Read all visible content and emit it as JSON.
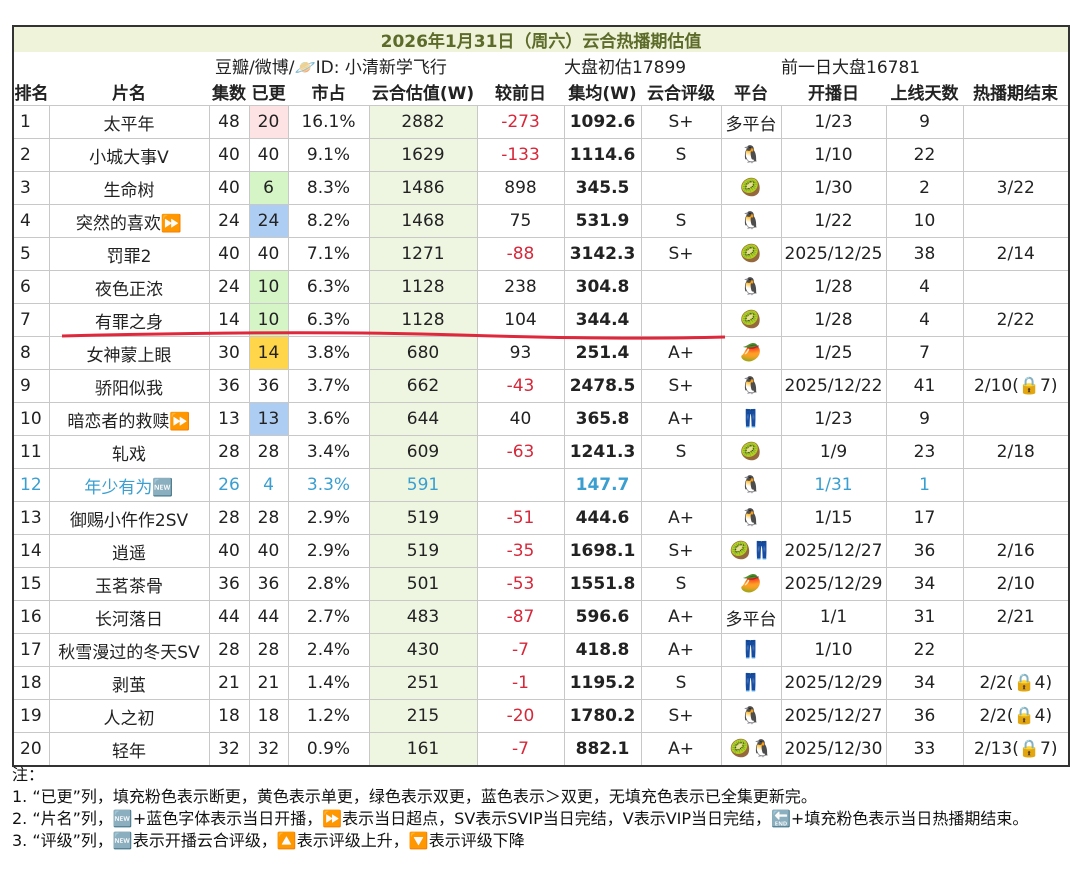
{
  "header": {
    "title": "2026年1月31日（周六）云合热播期估值",
    "source": "豆瓣/微博/🪐ID: 小清新学飞行",
    "estimate": "大盘初估17899",
    "previous": "前一日大盘16781"
  },
  "table": {
    "columns": [
      "排名",
      "片名",
      "集数",
      "已更",
      "市占",
      "云合估值(W)",
      "较前日",
      "集均(W)",
      "云合评级",
      "平台",
      "开播日",
      "上线天数",
      "热播期结束"
    ],
    "rows": [
      {
        "cells": [
          "1",
          "太平年",
          "48",
          "20",
          "16.1%",
          "2882",
          "-273",
          "1092.6",
          "S+",
          "多平台",
          "1/23",
          "9",
          null
        ],
        "update_color": "#fde3e3"
      },
      {
        "cells": [
          "2",
          "小城大事V",
          "40",
          "40",
          "9.1%",
          "1629",
          "-133",
          "1114.6",
          "S",
          "🐧",
          "1/10",
          "22",
          null
        ]
      },
      {
        "cells": [
          "3",
          "生命树",
          "40",
          "6",
          "8.3%",
          "1486",
          "898",
          "345.5",
          null,
          "🥝",
          "1/30",
          "2",
          "3/22"
        ],
        "update_color": "#d6f5c6"
      },
      {
        "cells": [
          "4",
          "突然的喜欢⏩",
          "24",
          "24",
          "8.2%",
          "1468",
          "75",
          "531.9",
          "S",
          "🐧",
          "1/22",
          "10",
          null
        ],
        "update_color": "#aecdf3"
      },
      {
        "cells": [
          "5",
          "罚罪2",
          "40",
          "40",
          "7.1%",
          "1271",
          "-88",
          "3142.3",
          "S+",
          "🥝",
          "2025/12/25",
          "38",
          "2/14"
        ]
      },
      {
        "cells": [
          "6",
          "夜色正浓",
          "24",
          "10",
          "6.3%",
          "1128",
          "238",
          "304.8",
          null,
          "🐧",
          "1/28",
          "4",
          null
        ],
        "update_color": "#d6f5c6"
      },
      {
        "cells": [
          "7",
          "有罪之身",
          "14",
          "10",
          "6.3%",
          "1128",
          "104",
          "344.4",
          null,
          "🥝",
          "1/28",
          "4",
          "2/22"
        ],
        "update_color": "#d6f5c6"
      },
      {
        "cells": [
          "8",
          "女神蒙上眼",
          "30",
          "14",
          "3.8%",
          "680",
          "93",
          "251.4",
          "A+",
          "🥭",
          "1/25",
          "7",
          null
        ],
        "update_color": "#ffd54a"
      },
      {
        "cells": [
          "9",
          "骄阳似我",
          "36",
          "36",
          "3.7%",
          "662",
          "-43",
          "2478.5",
          "S+",
          "🐧",
          "2025/12/22",
          "41",
          "2/10(🔒7)"
        ]
      },
      {
        "cells": [
          "10",
          "暗恋者的救赎⏩",
          "13",
          "13",
          "3.6%",
          "644",
          "40",
          "365.8",
          "A+",
          "👖",
          "1/23",
          "9",
          null
        ],
        "update_color": "#aecdf3"
      },
      {
        "cells": [
          "11",
          "轧戏",
          "28",
          "28",
          "3.4%",
          "609",
          "-63",
          "1241.3",
          "S",
          "🥝",
          "1/9",
          "23",
          "2/18"
        ]
      },
      {
        "cells": [
          "12",
          "年少有为🆕",
          "26",
          "4",
          "3.3%",
          "591",
          null,
          "147.7",
          null,
          "🐧",
          "1/31",
          "1",
          null
        ],
        "text_color": "#3a9fd0"
      },
      {
        "cells": [
          "13",
          "御赐小仵作2SV",
          "28",
          "28",
          "2.9%",
          "519",
          "-51",
          "444.6",
          "A+",
          "🐧",
          "1/15",
          "17",
          null
        ]
      },
      {
        "cells": [
          "14",
          "逍遥",
          "40",
          "40",
          "2.9%",
          "519",
          "-35",
          "1698.1",
          "S+",
          "🥝👖",
          "2025/12/27",
          "36",
          "2/16"
        ]
      },
      {
        "cells": [
          "15",
          "玉茗茶骨",
          "36",
          "36",
          "2.8%",
          "501",
          "-53",
          "1551.8",
          "S",
          "🥭",
          "2025/12/29",
          "34",
          "2/10"
        ]
      },
      {
        "cells": [
          "16",
          "长河落日",
          "44",
          "44",
          "2.7%",
          "483",
          "-87",
          "596.6",
          "A+",
          "多平台",
          "1/1",
          "31",
          "2/21"
        ]
      },
      {
        "cells": [
          "17",
          "秋雪漫过的冬天SV",
          "28",
          "28",
          "2.4%",
          "430",
          "-7",
          "418.8",
          "A+",
          "👖",
          "1/10",
          "22",
          null
        ]
      },
      {
        "cells": [
          "18",
          "剥茧",
          "21",
          "21",
          "1.4%",
          "251",
          "-1",
          "1195.2",
          "S",
          "👖",
          "2025/12/29",
          "34",
          "2/2(🔒4)"
        ]
      },
      {
        "cells": [
          "19",
          "人之初",
          "18",
          "18",
          "1.2%",
          "215",
          "-20",
          "1780.2",
          "S+",
          "🐧",
          "2025/12/27",
          "36",
          "2/2(🔒4)"
        ]
      },
      {
        "cells": [
          "20",
          "轻年",
          "32",
          "32",
          "0.9%",
          "161",
          "-7",
          "882.1",
          "A+",
          "🥝🐧",
          "2025/12/30",
          "33",
          "2/13(🔒7)"
        ]
      }
    ]
  },
  "notes": [
    "注：",
    "1. “已更”列，填充粉色表示断更，黄色表示单更，绿色表示双更，蓝色表示＞双更，无填充色表示已全集更新完。",
    "2. “片名”列，🆕+蓝色字体表示当日开播，⏩表示当日超点，SV表示SVIP当日完结，V表示VIP当日完结，🔚+填充粉色表示当日热播期结束。",
    "3. “评级”列，🆕表示开播云合评级，🔼表示评级上升，🔽表示评级下降"
  ]
}
